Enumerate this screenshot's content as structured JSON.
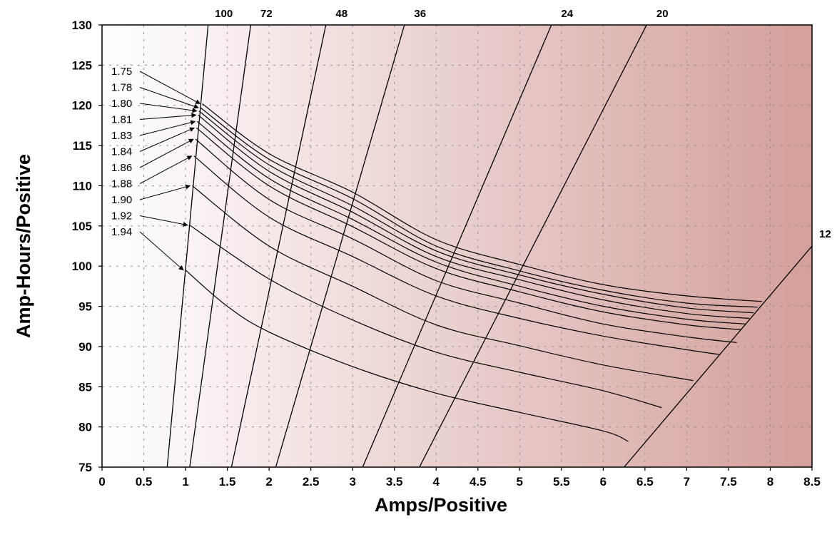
{
  "chart_data": {
    "type": "line",
    "xlabel": "Amps/Positive",
    "ylabel": "Amp-Hours/Positive",
    "xlim": [
      0,
      8.5
    ],
    "ylim": [
      75,
      130
    ],
    "x_ticks": [
      "0",
      "0.5",
      "1",
      "1.5",
      "2",
      "2.5",
      "3",
      "3.5",
      "4",
      "4.5",
      "5",
      "5.5",
      "6",
      "6.5",
      "7",
      "7.5",
      "8",
      "8.5"
    ],
    "y_ticks": [
      "75",
      "80",
      "85",
      "90",
      "95",
      "100",
      "105",
      "110",
      "115",
      "120",
      "125",
      "130"
    ],
    "grid": true,
    "background_gradient": [
      "#ffffff",
      "#d49f9b"
    ],
    "series": [
      {
        "name": "1.75",
        "x": [
          1.2,
          2,
          3,
          4,
          5,
          6,
          7,
          7.9
        ],
        "y": [
          120.2,
          114.0,
          109.2,
          103.3,
          100.2,
          97.7,
          96.3,
          95.6
        ]
      },
      {
        "name": "1.78",
        "x": [
          1.18,
          2,
          3,
          4,
          5,
          6,
          7,
          7.85
        ],
        "y": [
          119.7,
          113.3,
          108.4,
          102.5,
          99.4,
          97.0,
          95.4,
          94.9
        ]
      },
      {
        "name": "1.80",
        "x": [
          1.16,
          2,
          3,
          4,
          5,
          6,
          7,
          7.8
        ],
        "y": [
          119.3,
          112.6,
          107.5,
          101.9,
          98.9,
          96.5,
          94.8,
          94.2
        ]
      },
      {
        "name": "1.81",
        "x": [
          1.15,
          2,
          3,
          4,
          5,
          6,
          7,
          7.75
        ],
        "y": [
          118.8,
          111.8,
          106.7,
          101.2,
          98.3,
          95.8,
          94.1,
          93.5
        ]
      },
      {
        "name": "1.83",
        "x": [
          1.14,
          2,
          3,
          4,
          5,
          6,
          7,
          7.7
        ],
        "y": [
          118.0,
          110.9,
          105.8,
          100.5,
          97.5,
          95.0,
          93.4,
          92.8
        ]
      },
      {
        "name": "1.84",
        "x": [
          1.13,
          2,
          3,
          4,
          5,
          6,
          7,
          7.65
        ],
        "y": [
          117.2,
          110.0,
          104.9,
          99.7,
          96.8,
          94.3,
          92.7,
          92.1
        ]
      },
      {
        "name": "1.86",
        "x": [
          1.12,
          2,
          3,
          4,
          5,
          6,
          7,
          7.6
        ],
        "y": [
          115.8,
          108.3,
          103.4,
          98.2,
          95.4,
          92.8,
          91.2,
          90.5
        ]
      },
      {
        "name": "1.88",
        "x": [
          1.1,
          2,
          3,
          4,
          5,
          6,
          7,
          7.4
        ],
        "y": [
          113.7,
          106.1,
          101.2,
          96.3,
          93.5,
          91.3,
          89.6,
          89.0
        ]
      },
      {
        "name": "1.90",
        "x": [
          1.08,
          2,
          3,
          4,
          5,
          6,
          7,
          7.0
        ],
        "y": [
          110.0,
          102.5,
          97.5,
          92.7,
          90.1,
          87.7,
          85.9,
          85.9
        ]
      },
      {
        "name": "1.92",
        "x": [
          1.05,
          2,
          3,
          4,
          5,
          6,
          6.7
        ],
        "y": [
          105.1,
          98.4,
          93.3,
          89.3,
          86.8,
          84.5,
          82.4
        ]
      },
      {
        "name": "1.94",
        "x": [
          1.0,
          1.5,
          2,
          3,
          4,
          5,
          6,
          6.3
        ],
        "y": [
          99.5,
          95.0,
          91.8,
          87.5,
          84.2,
          81.8,
          79.5,
          78.2
        ]
      }
    ],
    "rate_lines": [
      {
        "label": "100",
        "x": [
          0.78,
          1.27
        ],
        "y": [
          75,
          130
        ]
      },
      {
        "label": "72",
        "x": [
          1.05,
          1.78
        ],
        "y": [
          75,
          130
        ]
      },
      {
        "label": "48",
        "x": [
          1.55,
          2.68
        ],
        "y": [
          75,
          130
        ]
      },
      {
        "label": "36",
        "x": [
          2.08,
          3.62
        ],
        "y": [
          75,
          130
        ]
      },
      {
        "label": "24",
        "x": [
          3.12,
          5.38
        ],
        "y": [
          75,
          130
        ]
      },
      {
        "label": "20",
        "x": [
          3.8,
          6.52
        ],
        "y": [
          75,
          130
        ]
      },
      {
        "label": "12",
        "x": [
          6.25,
          8.5
        ],
        "y": [
          75,
          102.5
        ]
      }
    ],
    "voltage_annotations": [
      {
        "label": "1.75",
        "x": 1.2,
        "y": 120.2
      },
      {
        "label": "1.78",
        "x": 1.18,
        "y": 119.7
      },
      {
        "label": "1.80",
        "x": 1.16,
        "y": 119.3
      },
      {
        "label": "1.81",
        "x": 1.15,
        "y": 118.8
      },
      {
        "label": "1.83",
        "x": 1.14,
        "y": 118.0
      },
      {
        "label": "1.84",
        "x": 1.13,
        "y": 117.2
      },
      {
        "label": "1.86",
        "x": 1.12,
        "y": 115.8
      },
      {
        "label": "1.88",
        "x": 1.1,
        "y": 113.7
      },
      {
        "label": "1.90",
        "x": 1.08,
        "y": 110.0
      },
      {
        "label": "1.92",
        "x": 1.05,
        "y": 105.1
      },
      {
        "label": "1.94",
        "x": 1.0,
        "y": 99.5
      }
    ]
  }
}
